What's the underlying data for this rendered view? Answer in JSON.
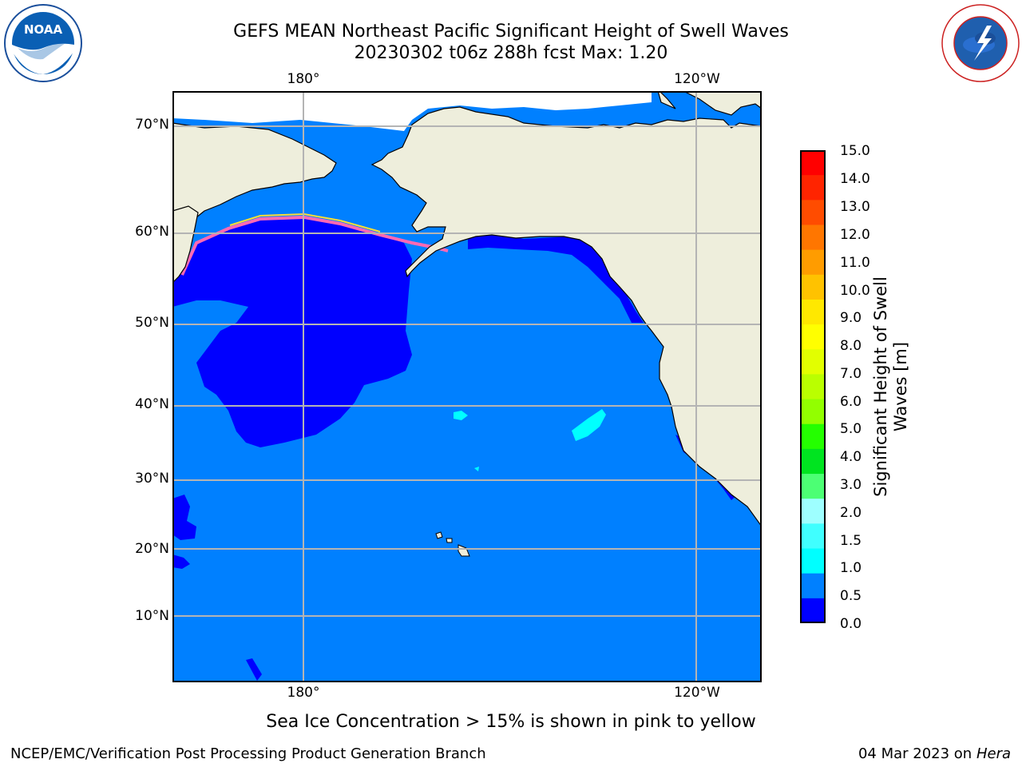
{
  "title": "GEFS MEAN Northeast Pacific Significant Height of Swell Waves",
  "subtitle": "20230302 t06z 288h fcst   Max: 1.20",
  "lon_labels": [
    "180°",
    "120°W"
  ],
  "lat_labels": [
    "70°N",
    "60°N",
    "50°N",
    "40°N",
    "30°N",
    "20°N",
    "10°N"
  ],
  "colorbar": {
    "label": "Significant Height of Swell Waves [m]",
    "label_line1": "Significant Height of Swell",
    "label_line2": "Waves [m]",
    "ticks": [
      "15.0",
      "14.0",
      "13.0",
      "12.0",
      "11.0",
      "10.0",
      "9.0",
      "8.0",
      "7.0",
      "6.0",
      "5.0",
      "4.0",
      "3.0",
      "2.0",
      "1.5",
      "1.0",
      "0.5",
      "0.0"
    ],
    "colors_top_to_bottom": [
      "#ff0000",
      "#ff2400",
      "#ff4c00",
      "#ff7600",
      "#ff9c00",
      "#ffc200",
      "#ffe800",
      "#ffff00",
      "#e2ff00",
      "#baff00",
      "#92ff00",
      "#24ff00",
      "#00e420",
      "#4cff74",
      "#9effff",
      "#40ffff",
      "#00ffff",
      "#0080ff",
      "#0000ff"
    ]
  },
  "colors": {
    "land": "#eeeedc",
    "ocean_low": "#0000ff",
    "ocean_mid": "#0080ff",
    "ice_pink": "#ff69b4",
    "ice_yellow": "#ffdd33"
  },
  "note": "Sea Ice Concentration > 15% is shown in pink to yellow",
  "footer_left": "NCEP/EMC/Verification Post Processing Product Generation Branch",
  "footer_date": "04 Mar 2023 on",
  "footer_machine": "Hera",
  "logos": {
    "left": "NOAA",
    "right": "NATIONAL WEATHER SERVICE"
  }
}
